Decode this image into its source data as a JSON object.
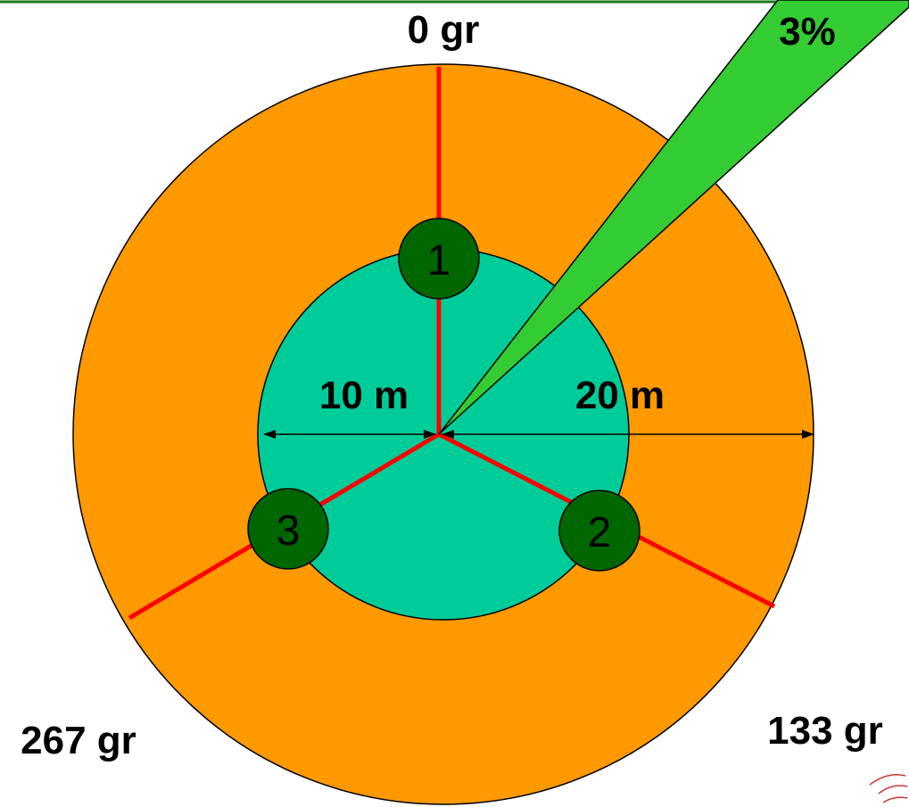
{
  "bearings": [
    "0 gr",
    "133 gr",
    "267 gr"
  ],
  "nodes": [
    {
      "label": "1"
    },
    {
      "label": "2"
    },
    {
      "label": "3"
    }
  ],
  "radii": [
    "10 m",
    "20 m"
  ],
  "slope": "3%"
}
